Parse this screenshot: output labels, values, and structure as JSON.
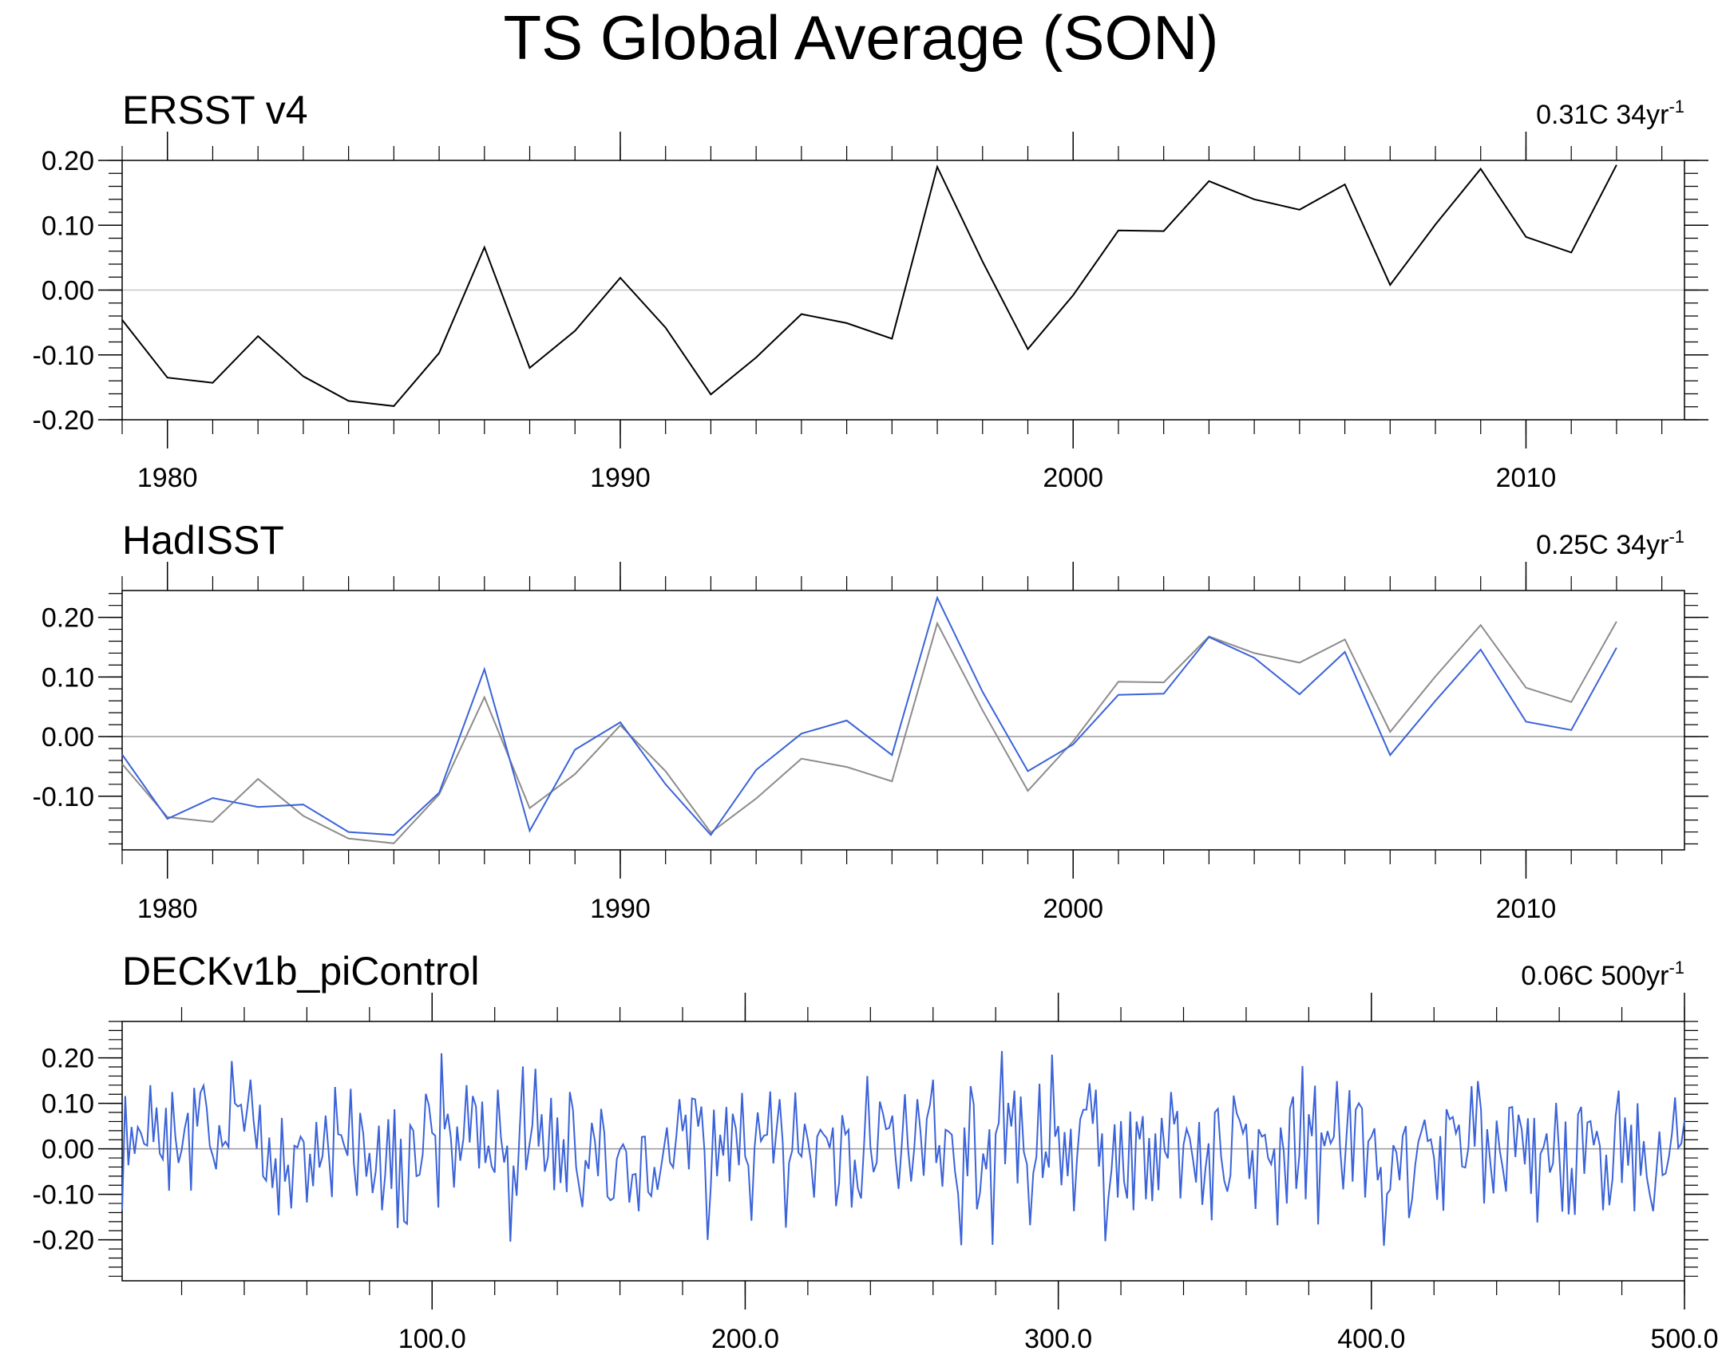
{
  "title": "TS Global Average (SON)",
  "chart_data": [
    {
      "type": "line",
      "title": "ERSST v4",
      "trend_value": "0.31C 34yr",
      "trend_exp": "-1",
      "x": [
        1979,
        1980,
        1981,
        1982,
        1983,
        1984,
        1985,
        1986,
        1987,
        1988,
        1989,
        1990,
        1991,
        1992,
        1993,
        1994,
        1995,
        1996,
        1997,
        1998,
        1999,
        2000,
        2001,
        2002,
        2003,
        2004,
        2005,
        2006,
        2007,
        2008,
        2009,
        2010,
        2011,
        2012
      ],
      "series": [
        {
          "name": "ERSST v4",
          "color": "#000000",
          "values": [
            -0.046,
            -0.135,
            -0.143,
            -0.071,
            -0.133,
            -0.171,
            -0.179,
            -0.097,
            0.066,
            -0.12,
            -0.063,
            0.019,
            -0.058,
            -0.161,
            -0.104,
            -0.037,
            -0.051,
            -0.075,
            0.19,
            0.044,
            -0.091,
            -0.008,
            0.092,
            0.091,
            0.168,
            0.14,
            0.124,
            0.163,
            0.008,
            0.101,
            0.187,
            0.082,
            0.058,
            0.193
          ]
        }
      ],
      "xlim": [
        1979,
        2013.5
      ],
      "ylim": [
        -0.2,
        0.2
      ],
      "xticks": [
        1980,
        1990,
        2000,
        2010
      ],
      "xtick_labels": [
        "1980",
        "1990",
        "2000",
        "2010"
      ],
      "yticks": [
        -0.2,
        -0.1,
        0.0,
        0.1,
        0.2
      ],
      "ytick_labels": [
        "-0.20",
        "-0.10",
        "0.00",
        "0.10",
        "0.20"
      ]
    },
    {
      "type": "line",
      "title": "HadISST",
      "trend_value": "0.25C 34yr",
      "trend_exp": "-1",
      "x": [
        1979,
        1980,
        1981,
        1982,
        1983,
        1984,
        1985,
        1986,
        1987,
        1988,
        1989,
        1990,
        1991,
        1992,
        1993,
        1994,
        1995,
        1996,
        1997,
        1998,
        1999,
        2000,
        2001,
        2002,
        2003,
        2004,
        2005,
        2006,
        2007,
        2008,
        2009,
        2010,
        2011,
        2012
      ],
      "series": [
        {
          "name": "ERSST v4",
          "color": "#8c8c8c",
          "values": [
            -0.046,
            -0.135,
            -0.143,
            -0.071,
            -0.133,
            -0.171,
            -0.179,
            -0.097,
            0.066,
            -0.12,
            -0.063,
            0.019,
            -0.058,
            -0.161,
            -0.104,
            -0.037,
            -0.051,
            -0.075,
            0.19,
            0.044,
            -0.091,
            -0.008,
            0.092,
            0.091,
            0.168,
            0.14,
            0.124,
            0.163,
            0.008,
            0.101,
            0.187,
            0.082,
            0.058,
            0.193
          ]
        },
        {
          "name": "HadISST",
          "color": "#3b63d9",
          "values": [
            -0.03,
            -0.138,
            -0.103,
            -0.118,
            -0.114,
            -0.16,
            -0.165,
            -0.094,
            0.113,
            -0.158,
            -0.022,
            0.024,
            -0.08,
            -0.165,
            -0.056,
            0.005,
            0.027,
            -0.031,
            0.233,
            0.075,
            -0.058,
            -0.013,
            0.07,
            0.072,
            0.167,
            0.132,
            0.071,
            0.142,
            -0.031,
            0.06,
            0.146,
            0.025,
            0.011,
            0.149
          ]
        }
      ],
      "xlim": [
        1979,
        2013.5
      ],
      "ylim": [
        -0.19,
        0.245
      ],
      "xticks": [
        1980,
        1990,
        2000,
        2010
      ],
      "xtick_labels": [
        "1980",
        "1990",
        "2000",
        "2010"
      ],
      "yticks": [
        -0.1,
        0.0,
        0.1,
        0.2
      ],
      "ytick_labels": [
        "-0.10",
        "0.00",
        "0.10",
        "0.20"
      ]
    },
    {
      "type": "line",
      "title": "DECKv1b_piControl",
      "trend_value": "0.06C 500yr",
      "trend_exp": "-1",
      "x_start": 1,
      "x_end": 500,
      "series": [
        {
          "name": "DECKv1b_piControl",
          "color": "#3b63d9",
          "n": 500,
          "seed": 20170801,
          "std": 0.085
        }
      ],
      "xlim": [
        1,
        500
      ],
      "ylim": [
        -0.29,
        0.28
      ],
      "xticks": [
        100,
        200,
        300,
        400,
        500
      ],
      "xtick_labels": [
        "100.0",
        "200.0",
        "300.0",
        "400.0",
        "500.0"
      ],
      "yticks": [
        -0.2,
        -0.1,
        0.0,
        0.1,
        0.2
      ],
      "ytick_labels": [
        "-0.20",
        "-0.10",
        "0.00",
        "0.10",
        "0.20"
      ]
    }
  ]
}
